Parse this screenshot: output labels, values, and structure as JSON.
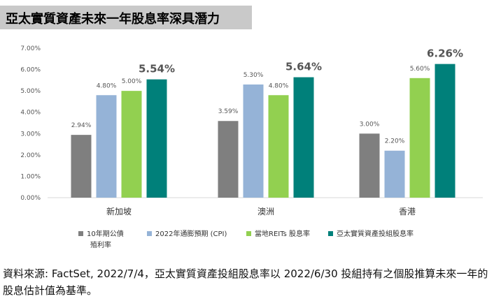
{
  "title": "亞太實質資產未來一年股息率深具潛力",
  "chart_data": {
    "type": "bar",
    "categories": [
      "新加坡",
      "澳洲",
      "香港"
    ],
    "series": [
      {
        "name": "10年期公債殖利率",
        "color": "#7f7f7f",
        "values": [
          2.94,
          3.59,
          3.0
        ],
        "labels": [
          "2.94%",
          "3.59%",
          "3.00%"
        ]
      },
      {
        "name": "2022年通膨預期 (CPI)",
        "color": "#95b3d7",
        "values": [
          4.8,
          5.3,
          2.2
        ],
        "labels": [
          "4.80%",
          "5.30%",
          "2.20%"
        ]
      },
      {
        "name": "當地REITs 股息率",
        "color": "#92d050",
        "values": [
          5.0,
          4.8,
          5.6
        ],
        "labels": [
          "5.00%",
          "4.80%",
          "5.60%"
        ]
      },
      {
        "name": "亞太實質資產投組股息率",
        "color": "#00807a",
        "values": [
          5.54,
          5.64,
          6.26
        ],
        "labels": [
          "5.54%",
          "5.64%",
          "6.26%"
        ],
        "highlight_color": "#1a8c84"
      }
    ],
    "y_ticks": [
      "0.00%",
      "1.00%",
      "2.00%",
      "3.00%",
      "4.00%",
      "5.00%",
      "6.00%",
      "7.00%"
    ],
    "ylim": [
      0,
      7
    ],
    "grid": false,
    "legend_position": "bottom"
  },
  "legend": {
    "item1_line1": "10年期公債",
    "item1_line2": "殖利率",
    "item2": "2022年通膨預期 (CPI)",
    "item3": "當地REITs 股息率",
    "item4": "亞太實質資產投組股息率"
  },
  "source_note": "資料來源: FactSet, 2022/7/4，亞太實質資產投組股息率以 2022/6/30 投組持有之個股推算未來一年的股息估計值為基準。"
}
